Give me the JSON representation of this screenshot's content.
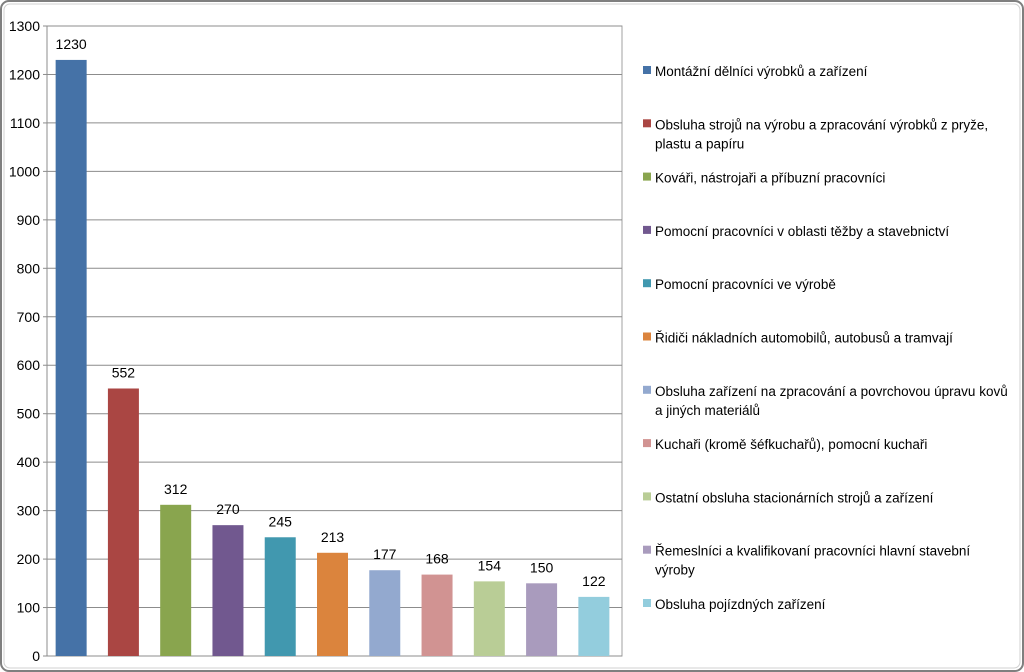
{
  "chart_data": {
    "type": "bar",
    "categories": [
      "Montážní dělníci výrobků a zařízení",
      "Obsluha strojů na výrobu a zpracování výrobků z pryže, plastu a papíru",
      "Kováři, nástrojaři a příbuzní pracovníci",
      "Pomocní pracovníci v oblasti těžby a stavebnictví",
      "Pomocní pracovníci ve výrobě",
      "Řidiči nákladních automobilů, autobusů a tramvají",
      "Obsluha zařízení na zpracování a povrchovou úpravu kovů a jiných materiálů",
      "Kuchaři (kromě šéfkuchařů), pomocní kuchaři",
      "Ostatní obsluha stacionárních strojů a zařízení",
      "Řemeslníci a kvalifikovaní pracovníci hlavní stavební výroby",
      "Obsluha pojízdných zařízení"
    ],
    "values": [
      1230,
      552,
      312,
      270,
      245,
      213,
      177,
      168,
      154,
      150,
      122
    ],
    "colors": [
      "#4572A7",
      "#AA4643",
      "#89A54E",
      "#71588F",
      "#4198AF",
      "#DB843D",
      "#93A9CF",
      "#D19392",
      "#B9CD96",
      "#A99BBD",
      "#93CDDD"
    ],
    "ylim": [
      0,
      1300
    ],
    "yticks": [
      "0",
      "100",
      "200",
      "300",
      "400",
      "500",
      "600",
      "700",
      "800",
      "900",
      "1000",
      "1100",
      "1200",
      "1300"
    ],
    "grid": true,
    "legend_position": "right",
    "title": "",
    "xlabel": "",
    "ylabel": ""
  },
  "legend_lines": [
    [
      "Montážní dělníci výrobků a zařízení"
    ],
    [
      "Obsluha strojů na výrobu a zpracování výrobků z pryže,",
      "plastu a papíru"
    ],
    [
      "Kováři, nástrojaři a příbuzní pracovníci"
    ],
    [
      "Pomocní pracovníci v oblasti těžby a stavebnictví"
    ],
    [
      "Pomocní pracovníci ve výrobě"
    ],
    [
      "Řidiči nákladních automobilů, autobusů a tramvají"
    ],
    [
      "Obsluha zařízení na zpracování a povrchovou úpravu kovů",
      "a jiných materiálů"
    ],
    [
      "Kuchaři (kromě šéfkuchařů), pomocní kuchaři"
    ],
    [
      "Ostatní obsluha stacionárních strojů a zařízení"
    ],
    [
      "Řemeslníci a kvalifikovaní pracovníci hlavní stavební",
      "výroby"
    ],
    [
      "Obsluha pojízdných zařízení"
    ]
  ]
}
